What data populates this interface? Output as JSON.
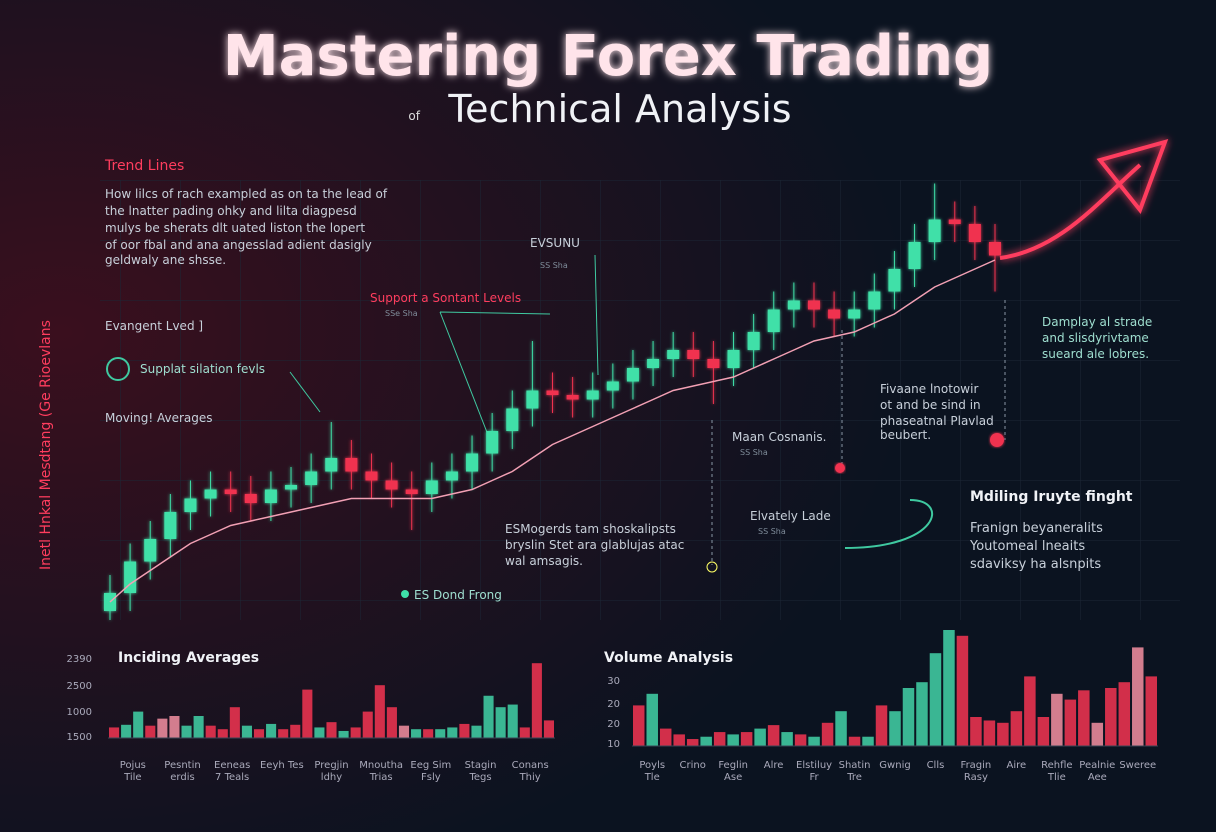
{
  "title": "Mastering Forex Trading",
  "subtitle_prefix": "of",
  "subtitle": "Technical Analysis",
  "annotations": {
    "trend_title": "Trend Lines",
    "trend_lines": [
      "How lilcs of rach exampled as on ta the lead of",
      "the lnatter pading ohky and lilta diagpesd",
      "mulys be sherats dlt uated liston the lopert",
      "of oor fbal and ana angesslad adient dasigly",
      "geldwaly ane shsse."
    ],
    "side_vertical": "Inetl Hnkal Mesdtang (Ge Rioevlans",
    "evangent": "Evangent Lved ]",
    "supplat": "Supplat silation fevls",
    "moving": "Moving! Averages",
    "support": "Support a Sontant Levels",
    "support_sub": "SSe Sha",
    "evsunu": "EVSUNU",
    "evsunu_sub": "SS Sha",
    "damplay": [
      "Damplay al strade",
      "and slisdyrivtame",
      "sueard ale lobres."
    ],
    "fivaane": [
      "Fivaane lnotowir",
      "ot and be sind in",
      "phaseatnal Plavlad",
      "beubert."
    ],
    "maan": "Maan Cosnanis.",
    "maan_sub": "SS Sha",
    "elvately": "Elvately Lade",
    "elvately_sub": "SS Sha",
    "mdiling": "Mdiling Iruyte finght",
    "mdiling_lines": [
      "Franign beyaneralits",
      "Youtomeal lneaits",
      "sdaviksy ha alsnpits"
    ],
    "esmogerds": [
      "ESMogerds tam shoskalipsts",
      "bryslin Stet ara glablujas atac",
      "wal amsagis."
    ],
    "dond": "ES Dond Frong"
  },
  "chart_data": [
    {
      "type": "candlestick",
      "up_color": "#3fe0a8",
      "down_color": "#f0334f",
      "ylim": [
        0,
        100
      ],
      "open": [
        2,
        6,
        13,
        18,
        24,
        27,
        29,
        28,
        26,
        29,
        30,
        33,
        36,
        33,
        31,
        29,
        28,
        31,
        33,
        37,
        42,
        47,
        51,
        50,
        49,
        51,
        53,
        56,
        58,
        60,
        58,
        56,
        60,
        64,
        69,
        71,
        69,
        67,
        69,
        73,
        78,
        84,
        89,
        88,
        84
      ],
      "close": [
        6,
        13,
        18,
        24,
        27,
        29,
        28,
        26,
        29,
        30,
        33,
        36,
        33,
        31,
        29,
        28,
        31,
        33,
        37,
        42,
        47,
        51,
        50,
        49,
        51,
        53,
        56,
        58,
        60,
        58,
        56,
        60,
        64,
        69,
        71,
        69,
        67,
        69,
        73,
        78,
        84,
        89,
        88,
        84,
        81
      ],
      "high": [
        10,
        17,
        22,
        28,
        31,
        33,
        33,
        32,
        33,
        34,
        37,
        44,
        40,
        37,
        35,
        33,
        35,
        37,
        41,
        46,
        51,
        62,
        55,
        54,
        55,
        57,
        60,
        62,
        64,
        64,
        62,
        64,
        68,
        73,
        75,
        75,
        73,
        73,
        77,
        82,
        88,
        97,
        93,
        92,
        88
      ],
      "low": [
        0,
        2,
        9,
        14,
        20,
        23,
        24,
        22,
        22,
        25,
        26,
        29,
        29,
        27,
        25,
        20,
        24,
        27,
        29,
        33,
        38,
        43,
        46,
        45,
        45,
        47,
        49,
        52,
        54,
        54,
        48,
        52,
        56,
        60,
        65,
        65,
        63,
        63,
        65,
        69,
        74,
        80,
        84,
        80,
        73
      ],
      "moving_average": {
        "color": "#f2a0b4",
        "values": [
          4,
          8,
          11,
          14,
          17,
          19,
          21,
          22,
          23,
          24,
          25,
          26,
          27,
          27,
          27,
          27,
          27,
          28,
          29,
          31,
          33,
          36,
          39,
          41,
          43,
          45,
          47,
          49,
          51,
          52,
          53,
          54,
          56,
          58,
          60,
          62,
          63,
          64,
          66,
          68,
          71,
          74,
          76,
          78,
          80
        ]
      }
    },
    {
      "type": "bar",
      "title": "Inciding Averages",
      "ylim": [
        0,
        100
      ],
      "y_labels": [
        "2390",
        "2500",
        "1000",
        "1500"
      ],
      "values": [
        12,
        15,
        30,
        14,
        22,
        25,
        14,
        25,
        14,
        10,
        35,
        14,
        10,
        16,
        10,
        15,
        55,
        12,
        18,
        8,
        12,
        30,
        60,
        35,
        14,
        10,
        10,
        10,
        12,
        16,
        14,
        48,
        35,
        38,
        12,
        85,
        20
      ],
      "colors": [
        "#e8334f",
        "#3fc9a0",
        "#3fc9a0",
        "#e8334f",
        "#e88a9a",
        "#e88a9a",
        "#3fc9a0",
        "#3fc9a0",
        "#e8334f",
        "#e8334f",
        "#e8334f",
        "#3fc9a0",
        "#e8334f",
        "#3fc9a0",
        "#e8334f",
        "#e8334f",
        "#e8334f",
        "#3fc9a0",
        "#e8334f",
        "#3fc9a0",
        "#e8334f",
        "#e8334f",
        "#e8334f",
        "#e8334f",
        "#e88a9a",
        "#3fc9a0",
        "#e8334f",
        "#3fc9a0",
        "#3fc9a0",
        "#e8334f",
        "#3fc9a0",
        "#3fc9a0",
        "#3fc9a0",
        "#3fc9a0",
        "#e8334f",
        "#e8334f",
        "#e8334f"
      ],
      "x_labels": [
        [
          "Pojus",
          "Tile"
        ],
        [
          "Pesntin",
          "erdis"
        ],
        [
          "Eeneas",
          "7 Teals"
        ],
        [
          "Eeyh Tes"
        ],
        [
          "Pregjin",
          "ldhy"
        ],
        [
          "Mnoutha",
          "Trias"
        ],
        [
          "Eeg Sim",
          "Fsly"
        ],
        [
          "Stagin",
          "Tegs"
        ],
        [
          "Conans",
          "Thiy"
        ]
      ]
    },
    {
      "type": "bar",
      "title": "Volume Analysis",
      "ylim": [
        0,
        100
      ],
      "y_labels": [
        "30",
        "20",
        "20",
        "10"
      ],
      "values": [
        35,
        45,
        15,
        10,
        6,
        8,
        12,
        10,
        12,
        15,
        18,
        12,
        10,
        8,
        20,
        30,
        8,
        8,
        35,
        30,
        50,
        55,
        80,
        100,
        95,
        25,
        22,
        20,
        30,
        60,
        25,
        45,
        40,
        48,
        20,
        50,
        55,
        85,
        60
      ],
      "colors": [
        "#e8334f",
        "#3fc9a0",
        "#e8334f",
        "#e8334f",
        "#e8334f",
        "#3fc9a0",
        "#e8334f",
        "#3fc9a0",
        "#e8334f",
        "#3fc9a0",
        "#e8334f",
        "#3fc9a0",
        "#e8334f",
        "#3fc9a0",
        "#e8334f",
        "#3fc9a0",
        "#e8334f",
        "#3fc9a0",
        "#e8334f",
        "#3fc9a0",
        "#3fc9a0",
        "#3fc9a0",
        "#3fc9a0",
        "#3fc9a0",
        "#e8334f",
        "#e8334f",
        "#e8334f",
        "#e8334f",
        "#e8334f",
        "#e8334f",
        "#e8334f",
        "#e88a9a",
        "#e8334f",
        "#e8334f",
        "#e88a9a",
        "#e8334f",
        "#e8334f",
        "#e88a9a",
        "#e8334f"
      ],
      "x_labels": [
        [
          "Poyls",
          "Tle"
        ],
        [
          "Crino"
        ],
        [
          "Feglin",
          "Ase"
        ],
        [
          "Alre"
        ],
        [
          "Elstiluy",
          "Fr"
        ],
        [
          "Shatin",
          "Tre"
        ],
        [
          "Gwnig"
        ],
        [
          "Clls"
        ],
        [
          "Fragin",
          "Rasy"
        ],
        [
          "Aire"
        ],
        [
          "Rehfle",
          "Tlie"
        ],
        [
          "Pealnie",
          "Aee"
        ],
        [
          "Sweree"
        ]
      ]
    }
  ]
}
